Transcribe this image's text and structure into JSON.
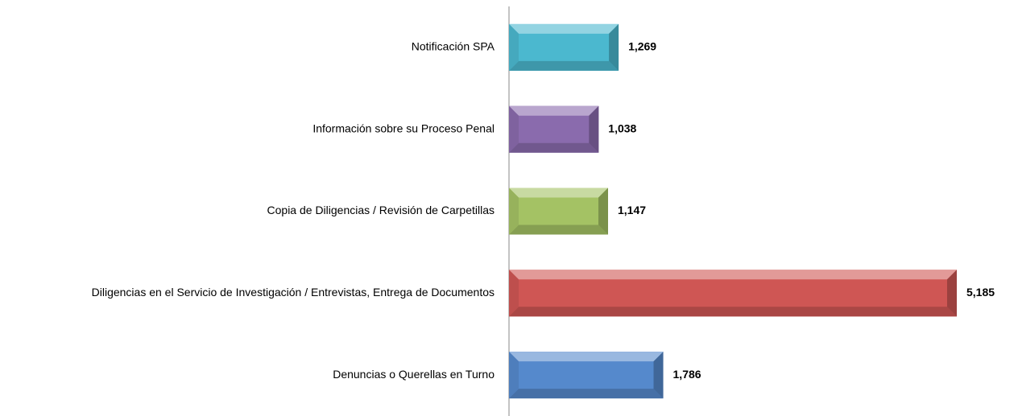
{
  "chart_data": {
    "type": "bar",
    "orientation": "horizontal",
    "categories": [
      "Notificación SPA",
      "Información sobre su Proceso Penal",
      "Copia de Diligencias / Revisión de Carpetillas",
      "Diligencias en el Servicio de Investigación / Entrevistas, Entrega de Documentos",
      "Denuncias o Querellas en Turno"
    ],
    "values": [
      1269,
      1038,
      1147,
      5185,
      1786
    ],
    "value_labels": [
      "1,269",
      "1,038",
      "1,147",
      "5,185",
      "1,786"
    ],
    "colors": [
      "#4bb8cf",
      "#8a6bad",
      "#a4c264",
      "#cf5654",
      "#5589cc"
    ]
  }
}
